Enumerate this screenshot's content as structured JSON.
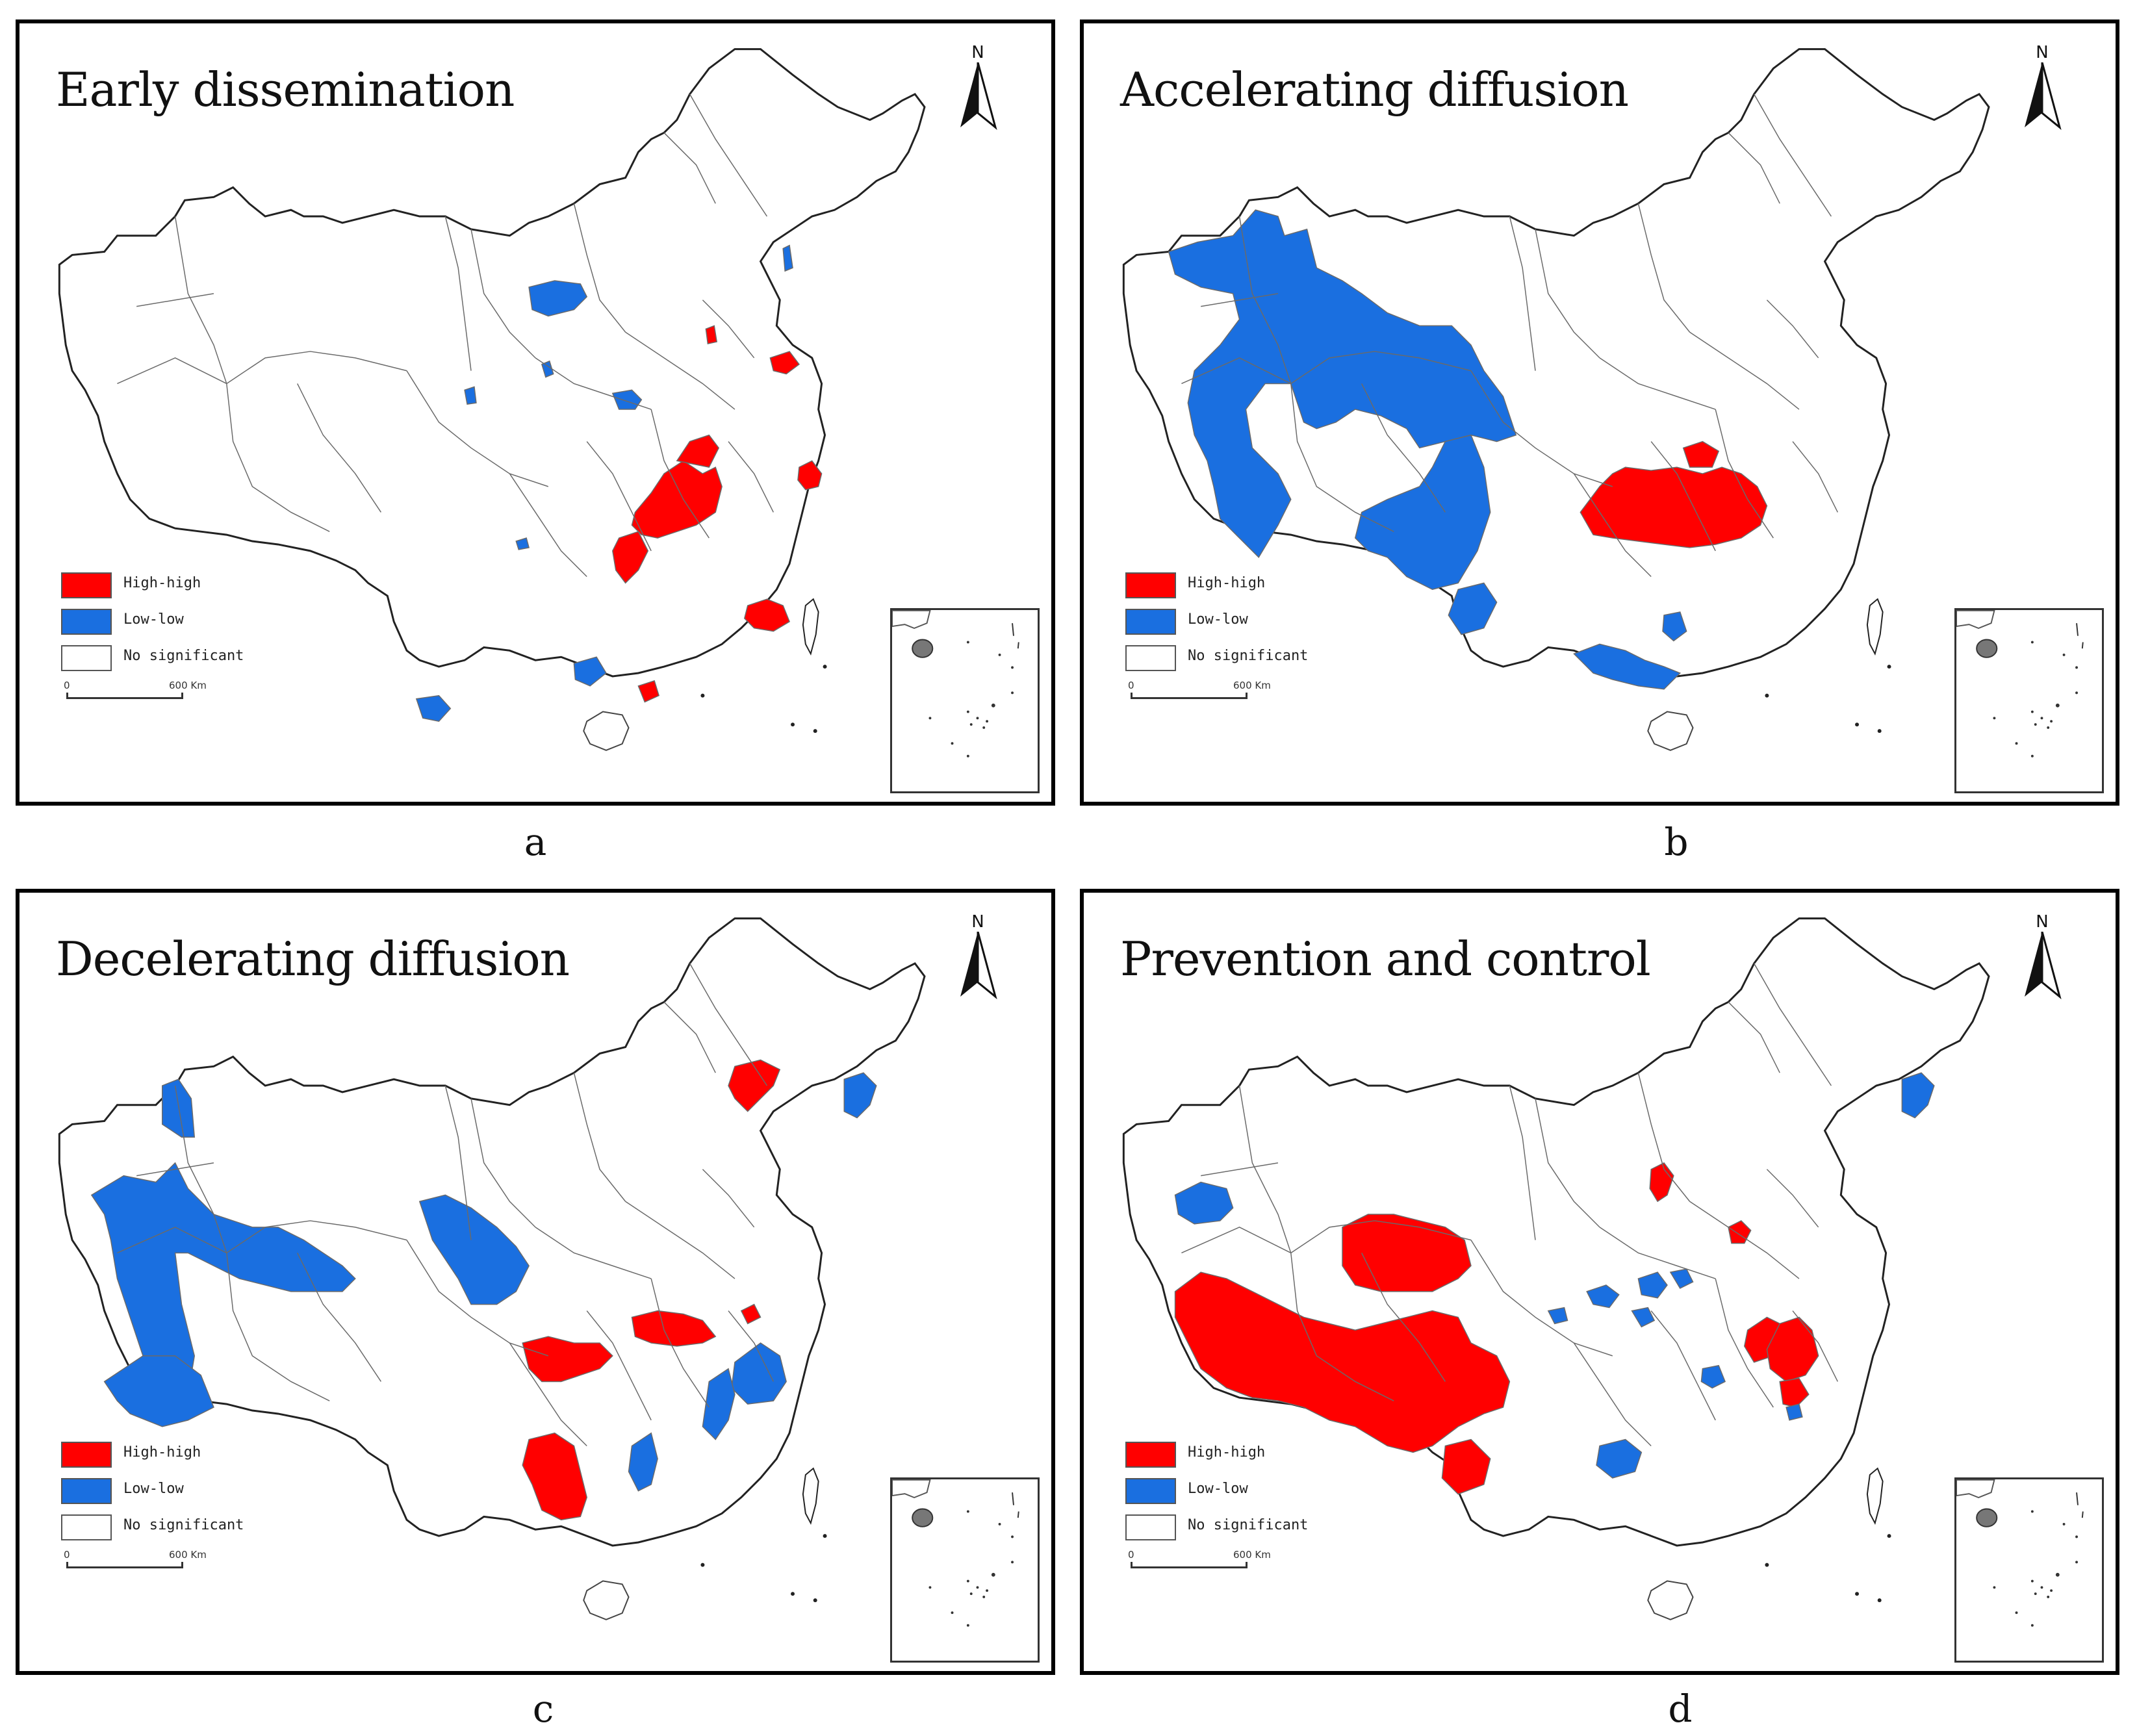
{
  "colors": {
    "high_high": "#ff0000",
    "low_low": "#1a6fe0",
    "not_significant": "#ffffff",
    "boundary": "#6a6a6a",
    "frame": "#000000"
  },
  "legend": {
    "high_high": "High-high",
    "low_low": "Low-low",
    "not_significant": "No significant"
  },
  "scale": {
    "zero": "0",
    "distance": "600 Km"
  },
  "north_label": "N",
  "panels": [
    {
      "id": "a",
      "title": "Early dissemination",
      "caption": "a"
    },
    {
      "id": "b",
      "title": "Accelerating diffusion",
      "caption": "b"
    },
    {
      "id": "c",
      "title": "Decelerating diffusion",
      "caption": "c"
    },
    {
      "id": "d",
      "title": "Prevention and control",
      "caption": "d"
    }
  ]
}
